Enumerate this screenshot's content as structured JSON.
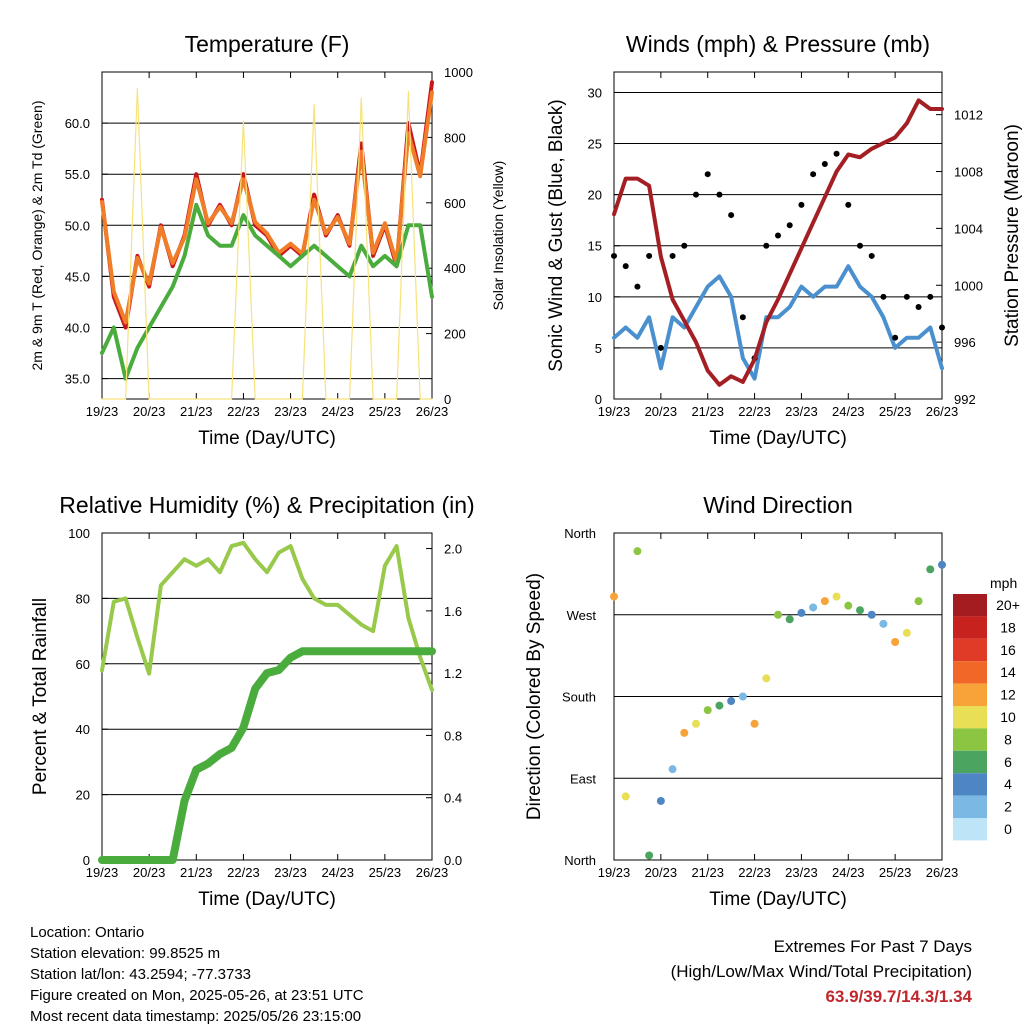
{
  "time_ticks": [
    "19/23",
    "20/23",
    "21/23",
    "22/23",
    "23/23",
    "24/23",
    "25/23",
    "26/23"
  ],
  "chart_data": [
    {
      "type": "line",
      "title": "Temperature (F)",
      "xlabel": "Time (Day/UTC)",
      "ylabel": "2m & 9m T (Red, Orange) & 2m Td (Green)",
      "y2label": "Solar Insolation (Yellow)",
      "ylim": [
        33,
        65
      ],
      "yticks": [
        "35.0",
        "40.0",
        "45.0",
        "50.0",
        "55.0",
        "60.0"
      ],
      "y2lim": [
        0,
        1000
      ],
      "y2ticks": [
        "0",
        "200",
        "400",
        "600",
        "800",
        "1000"
      ],
      "x": [
        0,
        0.25,
        0.5,
        0.75,
        1,
        1.25,
        1.5,
        1.75,
        2,
        2.25,
        2.5,
        2.75,
        3,
        3.25,
        3.5,
        3.75,
        4,
        4.25,
        4.5,
        4.75,
        5,
        5.25,
        5.5,
        5.75,
        6,
        6.25,
        6.5,
        6.75,
        7
      ],
      "series": [
        {
          "name": "2m T",
          "color": "#c8161d",
          "values": [
            52.5,
            43,
            40,
            47,
            44,
            50,
            46,
            49,
            55,
            50,
            52,
            50,
            55,
            50,
            49,
            47,
            48,
            47,
            53,
            49,
            51,
            48,
            58,
            47,
            50,
            46,
            60,
            55,
            64
          ]
        },
        {
          "name": "9m T",
          "color": "#f07d28",
          "values": [
            52.3,
            43.5,
            40.5,
            46.8,
            44.3,
            49.8,
            46.3,
            48.8,
            54.5,
            50.2,
            51.8,
            50.2,
            54.5,
            50.3,
            49.2,
            47.3,
            48.2,
            47.2,
            52.5,
            49.2,
            50.8,
            48.2,
            57.2,
            47.3,
            50.2,
            46.3,
            59,
            54.8,
            63
          ]
        },
        {
          "name": "2m Td",
          "color": "#4bac3e",
          "values": [
            37.5,
            40,
            35,
            38,
            40,
            42,
            44,
            47,
            52,
            49,
            48,
            48,
            51,
            49,
            48,
            47,
            46,
            47,
            48,
            47,
            46,
            45,
            48,
            46,
            47,
            46,
            50,
            50,
            43
          ]
        },
        {
          "name": "Solar Insolation",
          "color": "#f7e27a",
          "axis": "y2",
          "values": [
            0,
            0,
            0,
            950,
            0,
            0,
            0,
            0,
            0,
            0,
            0,
            0,
            850,
            0,
            0,
            0,
            0,
            0,
            900,
            0,
            0,
            0,
            920,
            0,
            0,
            0,
            940,
            0,
            0
          ]
        }
      ]
    },
    {
      "type": "line",
      "title": "Winds (mph) & Pressure (mb)",
      "xlabel": "Time (Day/UTC)",
      "ylabel": "Sonic Wind & Gust (Blue, Black)",
      "y2label": "Station Pressure (Maroon)",
      "ylim": [
        0,
        32
      ],
      "yticks": [
        "0",
        "5",
        "10",
        "15",
        "20",
        "25",
        "30"
      ],
      "y2lim": [
        992,
        1015
      ],
      "y2ticks": [
        "992",
        "996",
        "1000",
        "1004",
        "1008",
        "1012"
      ],
      "x": [
        0,
        0.25,
        0.5,
        0.75,
        1,
        1.25,
        1.5,
        1.75,
        2,
        2.25,
        2.5,
        2.75,
        3,
        3.25,
        3.5,
        3.75,
        4,
        4.25,
        4.5,
        4.75,
        5,
        5.25,
        5.5,
        5.75,
        6,
        6.25,
        6.5,
        6.75,
        7
      ],
      "series": [
        {
          "name": "Sonic Wind",
          "color": "#4a90cf",
          "values": [
            6,
            7,
            6,
            8,
            3,
            8,
            7,
            9,
            11,
            12,
            10,
            4,
            2,
            8,
            8,
            9,
            11,
            10,
            11,
            11,
            13,
            11,
            10,
            8,
            5,
            6,
            6,
            7,
            3
          ]
        },
        {
          "name": "Gust",
          "color": "#000000",
          "values": [
            14,
            13,
            11,
            14,
            5,
            14,
            15,
            20,
            22,
            20,
            18,
            8,
            4,
            15,
            16,
            17,
            19,
            22,
            23,
            24,
            19,
            15,
            14,
            10,
            6,
            10,
            9,
            10,
            7
          ]
        },
        {
          "name": "Station Pressure",
          "color": "#a31f24",
          "axis": "y2",
          "values": [
            1005,
            1007.5,
            1007.5,
            1007,
            1002,
            999,
            997.5,
            996,
            994,
            993,
            993.6,
            993.2,
            994.8,
            997.4,
            999,
            1000.8,
            1002.6,
            1004.4,
            1006.2,
            1008,
            1009.2,
            1009,
            1009.6,
            1010,
            1010.4,
            1011.4,
            1013,
            1012.4,
            1012.4
          ]
        }
      ]
    },
    {
      "type": "line",
      "title": "Relative Humidity (%) & Precipitation (in)",
      "xlabel": "Time (Day/UTC)",
      "ylabel": "Percent & Total Rainfall",
      "ylim": [
        0,
        100
      ],
      "yticks": [
        "0",
        "20",
        "40",
        "60",
        "80",
        "100"
      ],
      "y2lim": [
        0,
        2.1
      ],
      "y2ticks": [
        "0.0",
        "0.4",
        "0.8",
        "1.2",
        "1.6",
        "2.0"
      ],
      "x": [
        0,
        0.25,
        0.5,
        0.75,
        1,
        1.25,
        1.5,
        1.75,
        2,
        2.25,
        2.5,
        2.75,
        3,
        3.25,
        3.5,
        3.75,
        4,
        4.25,
        4.5,
        4.75,
        5,
        5.25,
        5.5,
        5.75,
        6,
        6.25,
        6.5,
        6.75,
        7
      ],
      "series": [
        {
          "name": "Relative Humidity",
          "color": "#98c94b",
          "values": [
            58,
            79,
            80,
            68,
            57,
            84,
            88,
            92,
            90,
            92,
            88,
            96,
            97,
            92,
            88,
            94,
            96,
            86,
            80,
            78,
            78,
            75,
            72,
            70,
            90,
            96,
            74,
            62,
            52
          ]
        },
        {
          "name": "Total Precipitation",
          "color": "#4bac3e",
          "axis": "y2",
          "values": [
            0,
            0,
            0,
            0,
            0,
            0,
            0,
            0.38,
            0.58,
            0.62,
            0.68,
            0.72,
            0.85,
            1.1,
            1.2,
            1.22,
            1.3,
            1.34,
            1.34,
            1.34,
            1.34,
            1.34,
            1.34,
            1.34,
            1.34,
            1.34,
            1.34,
            1.34,
            1.34
          ]
        }
      ]
    },
    {
      "type": "scatter",
      "title": "Wind Direction",
      "xlabel": "Time (Day/UTC)",
      "ylabel": "Direction (Colored By Speed)",
      "yticks": [
        "North",
        "East",
        "South",
        "West",
        "North"
      ],
      "ylim": [
        0,
        360
      ],
      "x": [
        0,
        0.25,
        0.5,
        0.75,
        1,
        1.25,
        1.5,
        1.75,
        2,
        2.25,
        2.5,
        2.75,
        3,
        3.25,
        3.5,
        3.75,
        4,
        4.25,
        4.5,
        4.75,
        5,
        5.25,
        5.5,
        5.75,
        6,
        6.25,
        6.5,
        6.75,
        7
      ],
      "series": [
        {
          "name": "Direction",
          "values": [
            290,
            70,
            340,
            5,
            65,
            100,
            140,
            150,
            165,
            170,
            175,
            180,
            150,
            200,
            270,
            265,
            272,
            278,
            285,
            290,
            280,
            275,
            270,
            260,
            240,
            250,
            285,
            320,
            325
          ]
        }
      ],
      "colorbar": {
        "title": "mph",
        "labels": [
          "20+",
          "18",
          "16",
          "14",
          "12",
          "10",
          "8",
          "6",
          "4",
          "2",
          "0"
        ],
        "colors": [
          "#a51c20",
          "#c8221f",
          "#e03b27",
          "#f06728",
          "#f7a33a",
          "#e9df57",
          "#8cc542",
          "#4ba561",
          "#4d86c3",
          "#7bb8e4",
          "#bde5f7"
        ]
      }
    }
  ],
  "footer": {
    "location": "Location: Ontario",
    "elevation": "Station elevation: 99.8525 m",
    "latlon": "Station lat/lon: 43.2594; -77.3733",
    "created": "Figure created on Mon, 2025-05-26, at 23:51 UTC",
    "recent": "Most recent data timestamp: 2025/05/26 23:15:00",
    "extremes_title": "Extremes For Past 7 Days",
    "extremes_subtitle": "(High/Low/Max Wind/Total Precipitation)",
    "extremes_values": "63.9/39.7/14.3/1.34"
  }
}
